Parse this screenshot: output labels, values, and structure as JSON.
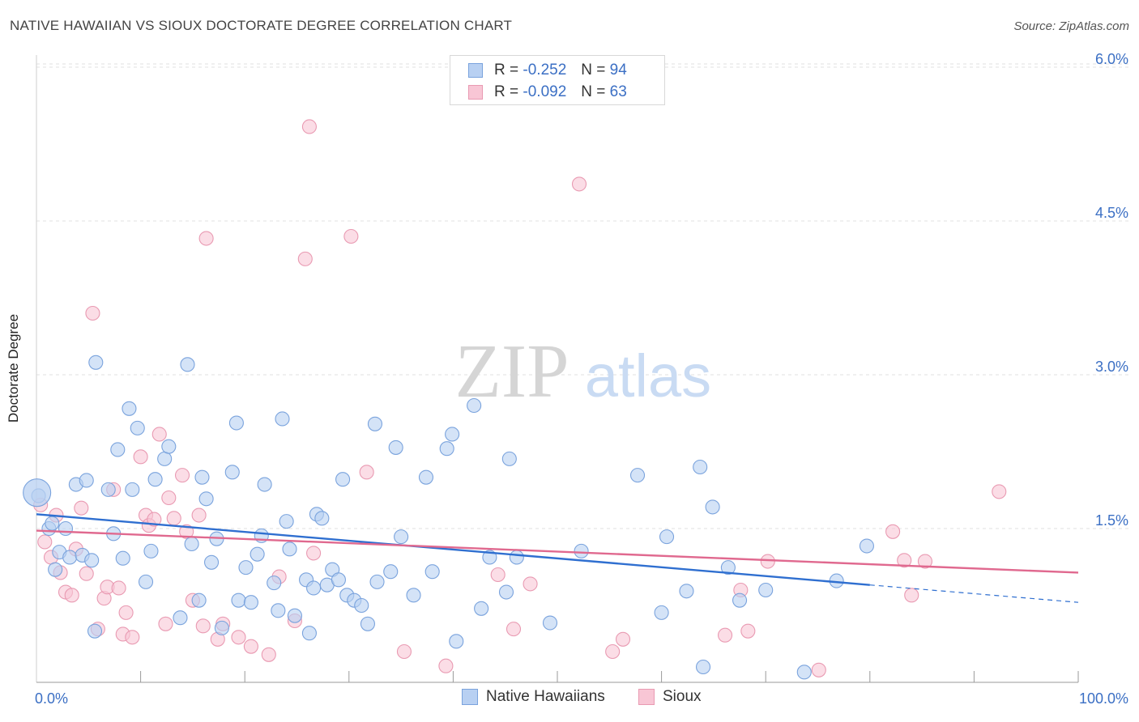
{
  "header": {
    "title": "NATIVE HAWAIIAN VS SIOUX DOCTORATE DEGREE CORRELATION CHART",
    "source": "Source: ZipAtlas.com"
  },
  "watermark": {
    "zip": "ZIP",
    "atlas": "atlas"
  },
  "legend_top": {
    "rows": [
      {
        "r_label": "R =",
        "r_value": "-0.252",
        "n_label": "N =",
        "n_value": "94"
      },
      {
        "r_label": "R =",
        "r_value": "-0.092",
        "n_label": "N =",
        "n_value": "63"
      }
    ]
  },
  "legend_bottom": {
    "items": [
      "Native Hawaiians",
      "Sioux"
    ]
  },
  "colors": {
    "blue_fill": "#b8d0f2",
    "blue_stroke": "#7aa3dd",
    "blue_line": "#2f6fd0",
    "pink_fill": "#f8c6d5",
    "pink_stroke": "#e99ab2",
    "pink_line": "#e0698f",
    "axis_text": "#3b6fc4"
  },
  "chart_data": {
    "type": "scatter",
    "title": "NATIVE HAWAIIAN VS SIOUX DOCTORATE DEGREE CORRELATION CHART",
    "xlabel": "",
    "ylabel": "Doctorate Degree",
    "xlim": [
      0,
      100
    ],
    "ylim": [
      0,
      6.2
    ],
    "y_ticks": [
      {
        "v": 1.5,
        "label": "1.5%"
      },
      {
        "v": 3.0,
        "label": "3.0%"
      },
      {
        "v": 4.5,
        "label": "4.5%"
      },
      {
        "v": 6.0,
        "label": "6.0%"
      }
    ],
    "x_tick_labels": [
      {
        "v": 0,
        "label": "0.0%"
      },
      {
        "v": 100,
        "label": "100.0%"
      }
    ],
    "grid": "horizontal dashed",
    "series": [
      {
        "name": "Native Hawaiians",
        "color": "blue",
        "trend": {
          "x": [
            0,
            80
          ],
          "y": [
            1.64,
            0.95
          ],
          "dashed_to": [
            100,
            0.78
          ]
        },
        "points": [
          [
            0.2,
            1.82
          ],
          [
            1.2,
            1.5
          ],
          [
            1.5,
            1.55
          ],
          [
            1.8,
            1.1
          ],
          [
            2.2,
            1.27
          ],
          [
            2.8,
            1.5
          ],
          [
            3.2,
            1.22
          ],
          [
            3.8,
            1.93
          ],
          [
            4.4,
            1.24
          ],
          [
            4.8,
            1.97
          ],
          [
            5.3,
            1.19
          ],
          [
            5.6,
            0.5
          ],
          [
            5.7,
            3.12
          ],
          [
            6.9,
            1.88
          ],
          [
            7.4,
            1.45
          ],
          [
            7.8,
            2.27
          ],
          [
            8.3,
            1.21
          ],
          [
            8.9,
            2.67
          ],
          [
            9.2,
            1.88
          ],
          [
            9.7,
            2.48
          ],
          [
            10.5,
            0.98
          ],
          [
            11.0,
            1.28
          ],
          [
            11.4,
            1.98
          ],
          [
            12.3,
            2.18
          ],
          [
            12.7,
            2.3
          ],
          [
            13.8,
            0.63
          ],
          [
            14.5,
            3.1
          ],
          [
            14.9,
            1.35
          ],
          [
            15.6,
            0.8
          ],
          [
            15.9,
            2.0
          ],
          [
            16.3,
            1.79
          ],
          [
            16.8,
            1.17
          ],
          [
            17.3,
            1.4
          ],
          [
            17.8,
            0.53
          ],
          [
            18.8,
            2.05
          ],
          [
            19.2,
            2.53
          ],
          [
            19.4,
            0.8
          ],
          [
            20.1,
            1.12
          ],
          [
            20.6,
            0.78
          ],
          [
            21.2,
            1.25
          ],
          [
            21.6,
            1.43
          ],
          [
            21.9,
            1.93
          ],
          [
            22.8,
            0.97
          ],
          [
            23.2,
            0.7
          ],
          [
            23.6,
            2.57
          ],
          [
            24.0,
            1.57
          ],
          [
            24.3,
            1.3
          ],
          [
            24.8,
            0.65
          ],
          [
            25.9,
            1.0
          ],
          [
            26.2,
            0.48
          ],
          [
            26.6,
            0.92
          ],
          [
            26.9,
            1.64
          ],
          [
            27.4,
            1.6
          ],
          [
            27.9,
            0.95
          ],
          [
            28.4,
            1.1
          ],
          [
            29.0,
            1.0
          ],
          [
            29.4,
            1.98
          ],
          [
            29.8,
            0.85
          ],
          [
            30.5,
            0.8
          ],
          [
            31.2,
            0.75
          ],
          [
            31.8,
            0.57
          ],
          [
            32.5,
            2.52
          ],
          [
            32.7,
            0.98
          ],
          [
            34.0,
            1.08
          ],
          [
            34.5,
            2.29
          ],
          [
            35.0,
            1.42
          ],
          [
            36.2,
            0.85
          ],
          [
            37.4,
            2.0
          ],
          [
            38.0,
            1.08
          ],
          [
            39.4,
            2.28
          ],
          [
            39.9,
            2.42
          ],
          [
            40.3,
            0.4
          ],
          [
            42.0,
            2.7
          ],
          [
            42.7,
            0.72
          ],
          [
            43.5,
            1.22
          ],
          [
            45.1,
            0.88
          ],
          [
            45.4,
            2.18
          ],
          [
            46.1,
            1.22
          ],
          [
            49.3,
            0.58
          ],
          [
            52.3,
            1.28
          ],
          [
            57.7,
            2.02
          ],
          [
            60.0,
            0.68
          ],
          [
            60.5,
            1.42
          ],
          [
            62.4,
            0.89
          ],
          [
            63.7,
            2.1
          ],
          [
            64.0,
            0.15
          ],
          [
            64.9,
            1.71
          ],
          [
            66.4,
            1.12
          ],
          [
            67.5,
            0.8
          ],
          [
            70.0,
            0.9
          ],
          [
            73.7,
            0.1
          ],
          [
            76.8,
            0.99
          ],
          [
            79.7,
            1.33
          ],
          [
            0.05,
            1.85
          ]
        ]
      },
      {
        "name": "Sioux",
        "color": "pink",
        "trend": {
          "x": [
            0,
            100
          ],
          "y": [
            1.48,
            1.07
          ]
        },
        "points": [
          [
            0.4,
            1.73
          ],
          [
            0.8,
            1.37
          ],
          [
            1.4,
            1.22
          ],
          [
            1.9,
            1.63
          ],
          [
            2.3,
            1.07
          ],
          [
            2.8,
            0.88
          ],
          [
            3.4,
            0.85
          ],
          [
            3.8,
            1.3
          ],
          [
            4.3,
            1.7
          ],
          [
            4.8,
            1.06
          ],
          [
            5.4,
            3.6
          ],
          [
            5.9,
            0.52
          ],
          [
            6.5,
            0.82
          ],
          [
            6.8,
            0.93
          ],
          [
            7.4,
            1.88
          ],
          [
            7.9,
            0.92
          ],
          [
            8.3,
            0.47
          ],
          [
            8.6,
            0.68
          ],
          [
            9.2,
            0.44
          ],
          [
            10.0,
            2.2
          ],
          [
            10.5,
            1.63
          ],
          [
            10.8,
            1.53
          ],
          [
            11.3,
            1.59
          ],
          [
            11.8,
            2.42
          ],
          [
            12.4,
            0.57
          ],
          [
            12.7,
            1.8
          ],
          [
            13.2,
            1.6
          ],
          [
            14.0,
            2.02
          ],
          [
            14.4,
            1.47
          ],
          [
            15.0,
            0.8
          ],
          [
            15.6,
            1.63
          ],
          [
            16.0,
            0.55
          ],
          [
            16.3,
            4.33
          ],
          [
            17.4,
            0.42
          ],
          [
            17.9,
            0.57
          ],
          [
            19.4,
            0.44
          ],
          [
            20.6,
            0.35
          ],
          [
            22.3,
            0.27
          ],
          [
            23.3,
            1.03
          ],
          [
            24.8,
            0.6
          ],
          [
            25.8,
            4.13
          ],
          [
            26.2,
            5.42
          ],
          [
            26.6,
            1.26
          ],
          [
            30.2,
            4.35
          ],
          [
            31.7,
            2.05
          ],
          [
            35.3,
            0.3
          ],
          [
            39.3,
            0.16
          ],
          [
            44.3,
            1.05
          ],
          [
            45.8,
            0.52
          ],
          [
            47.4,
            0.96
          ],
          [
            52.1,
            4.86
          ],
          [
            55.3,
            0.3
          ],
          [
            56.3,
            0.42
          ],
          [
            66.1,
            0.46
          ],
          [
            67.6,
            0.9
          ],
          [
            68.3,
            0.5
          ],
          [
            70.2,
            1.18
          ],
          [
            75.1,
            0.12
          ],
          [
            82.2,
            1.47
          ],
          [
            83.3,
            1.19
          ],
          [
            84.0,
            0.85
          ],
          [
            85.3,
            1.18
          ],
          [
            92.4,
            1.86
          ]
        ]
      }
    ]
  }
}
